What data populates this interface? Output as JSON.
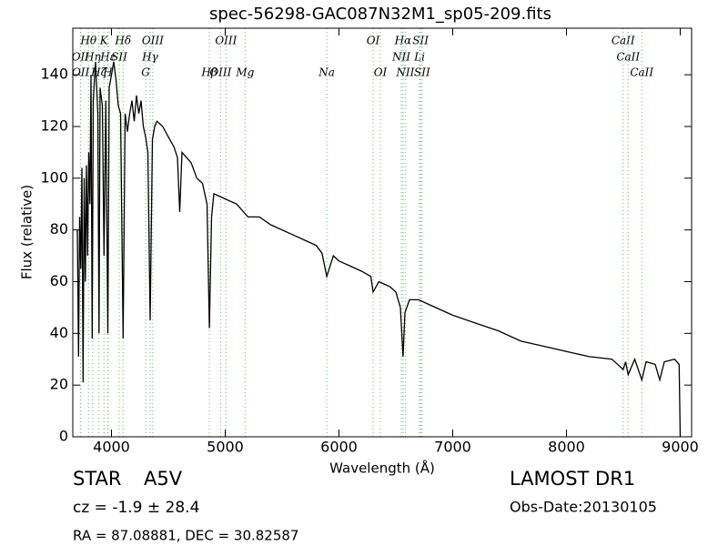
{
  "chart_data": {
    "type": "line",
    "title": "spec-56298-GAC087N32M1_sp05-209.fits",
    "x_label": "Wavelength (Å)",
    "y_label": "Flux (relative)",
    "xlim": [
      3660,
      9100
    ],
    "ylim": [
      0,
      158
    ],
    "xticks": [
      4000,
      5000,
      6000,
      7000,
      8000,
      9000
    ],
    "yticks": [
      0,
      20,
      40,
      60,
      80,
      100,
      120,
      140
    ],
    "color": "#000000",
    "line_color": "#66bb66",
    "spectral_lines": [
      [
        {
          "label": "Hθ",
          "wavelength": 3798
        },
        {
          "label": "K",
          "wavelength": 3934
        },
        {
          "label": "Hδ",
          "wavelength": 4102
        },
        {
          "label": "OIII",
          "wavelength": 4363
        },
        {
          "label": "OIII",
          "wavelength": 5007
        },
        {
          "label": "OI",
          "wavelength": 6300
        },
        {
          "label": "Hα",
          "wavelength": 6563
        },
        {
          "label": "SII",
          "wavelength": 6717
        },
        {
          "label": "CaII",
          "wavelength": 8498
        }
      ],
      [
        {
          "label": "OII",
          "wavelength": 3727
        },
        {
          "label": "Hη",
          "wavelength": 3835
        },
        {
          "label": "Hε",
          "wavelength": 3970
        },
        {
          "label": "SII",
          "wavelength": 4068
        },
        {
          "label": "Hγ",
          "wavelength": 4340
        },
        {
          "label": "NII",
          "wavelength": 6548
        },
        {
          "label": "Li",
          "wavelength": 6708
        },
        {
          "label": "CaII",
          "wavelength": 8542
        }
      ],
      [
        {
          "label": "OII",
          "wavelength": 3729
        },
        {
          "label": "Hζ",
          "wavelength": 3889
        },
        {
          "label": "H",
          "wavelength": 3968
        },
        {
          "label": "G",
          "wavelength": 4300
        },
        {
          "label": "Hβ",
          "wavelength": 4861
        },
        {
          "label": "OIII",
          "wavelength": 4959
        },
        {
          "label": "Mg",
          "wavelength": 5175
        },
        {
          "label": "Na",
          "wavelength": 5893
        },
        {
          "label": "OI",
          "wavelength": 6364
        },
        {
          "label": "NII",
          "wavelength": 6583
        },
        {
          "label": "SII",
          "wavelength": 6731
        },
        {
          "label": "CaII",
          "wavelength": 8662
        }
      ]
    ],
    "x": [
      3700,
      3710,
      3720,
      3730,
      3740,
      3750,
      3760,
      3770,
      3780,
      3790,
      3800,
      3810,
      3820,
      3830,
      3840,
      3860,
      3880,
      3890,
      3900,
      3920,
      3934,
      3950,
      3968,
      3980,
      4000,
      4020,
      4040,
      4060,
      4080,
      4102,
      4120,
      4140,
      4160,
      4180,
      4200,
      4220,
      4240,
      4260,
      4280,
      4300,
      4320,
      4340,
      4360,
      4380,
      4400,
      4450,
      4500,
      4550,
      4580,
      4600,
      4620,
      4700,
      4750,
      4800,
      4840,
      4861,
      4880,
      4900,
      5000,
      5100,
      5200,
      5300,
      5400,
      5500,
      5600,
      5700,
      5800,
      5850,
      5893,
      5950,
      6000,
      6100,
      6200,
      6280,
      6300,
      6350,
      6450,
      6500,
      6540,
      6563,
      6580,
      6620,
      6700,
      6800,
      7000,
      7200,
      7400,
      7600,
      7800,
      8000,
      8200,
      8400,
      8498,
      8520,
      8542,
      8600,
      8662,
      8700,
      8780,
      8820,
      8860,
      8950,
      8990,
      9000
    ],
    "values": [
      80,
      31,
      85,
      65,
      104,
      21,
      100,
      60,
      105,
      70,
      110,
      90,
      140,
      38,
      130,
      145,
      125,
      40,
      135,
      128,
      70,
      130,
      40,
      135,
      140,
      145,
      138,
      128,
      125,
      38,
      125,
      118,
      125,
      130,
      122,
      132,
      125,
      130,
      120,
      116,
      110,
      45,
      115,
      120,
      122,
      120,
      116,
      112,
      108,
      87,
      110,
      106,
      100,
      98,
      90,
      42,
      85,
      94,
      92,
      90,
      85,
      85,
      82,
      80,
      78,
      76,
      74,
      71,
      62,
      70,
      68,
      66,
      64,
      62,
      56,
      60,
      58,
      56,
      50,
      31,
      48,
      53,
      53,
      51,
      47,
      44,
      41,
      37,
      35,
      33,
      31,
      30,
      26,
      29,
      24,
      30,
      22,
      29,
      28,
      22,
      29,
      30,
      28,
      0
    ]
  },
  "footer": {
    "object_class": "STAR",
    "subclass": "A5V",
    "cz": "cz = -1.9 ± 28.4",
    "survey": "LAMOST DR1",
    "obs_date": "Obs-Date:20130105",
    "coords": "RA = 87.08881, DEC = 30.82587"
  }
}
